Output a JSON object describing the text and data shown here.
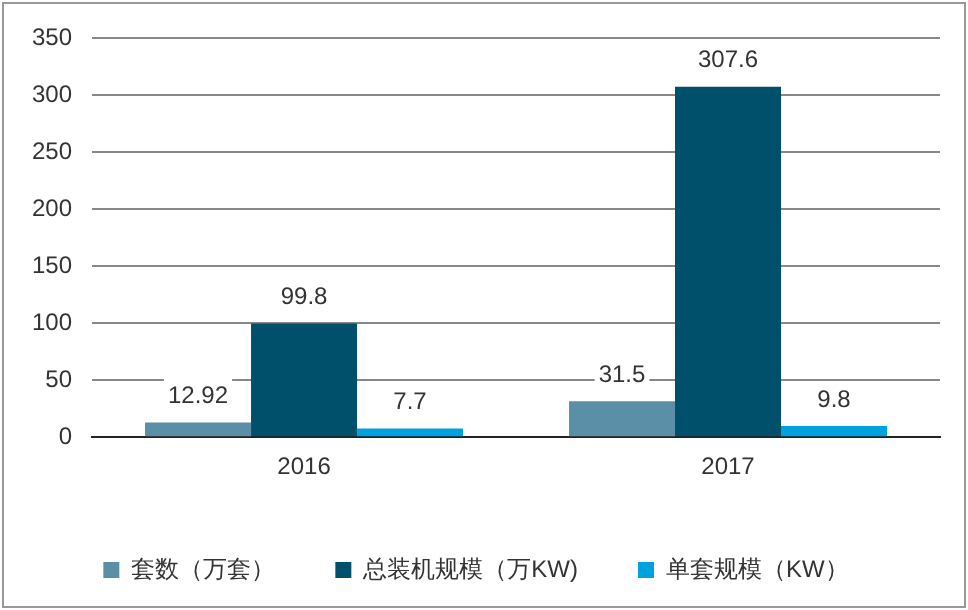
{
  "chart_data": {
    "type": "bar",
    "categories": [
      "2016",
      "2017"
    ],
    "series": [
      {
        "name": "套数（万套）",
        "color": "#5b8fa8",
        "values": [
          12.92,
          31.5
        ]
      },
      {
        "name": "总装机规模（万KW)",
        "color": "#00506b",
        "values": [
          99.8,
          307.6
        ]
      },
      {
        "name": "单套规模（KW）",
        "color": "#00a2de",
        "values": [
          7.7,
          9.8
        ]
      }
    ],
    "ylim": [
      0,
      350
    ],
    "yticks": [
      0,
      50,
      100,
      150,
      200,
      250,
      300,
      350
    ],
    "grid": "y",
    "legend": "bottom",
    "data_labels": true
  }
}
